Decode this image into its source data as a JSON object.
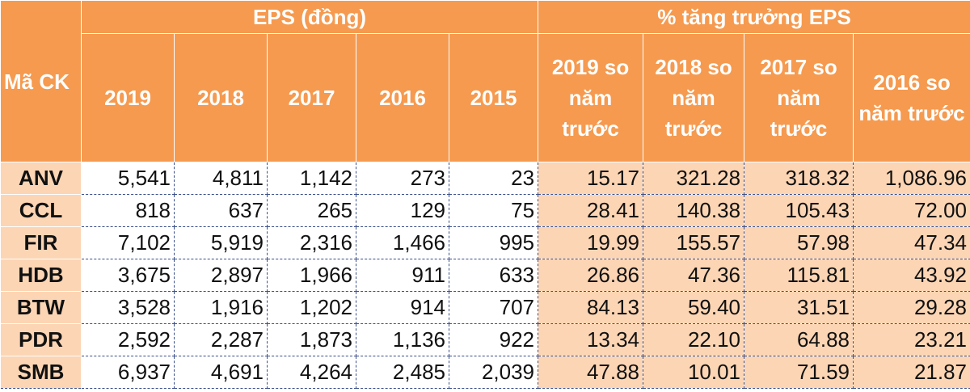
{
  "header": {
    "code": "Mã CK",
    "eps_group": "EPS (đồng)",
    "growth_group": "% tăng trưởng EPS",
    "eps_years": [
      "2019",
      "2018",
      "2017",
      "2016",
      "2015"
    ],
    "growth_cols": [
      "2019 so năm trước",
      "2018 so năm trước",
      "2017 so năm trước",
      "2016 so năm trước"
    ]
  },
  "table": {
    "rows": [
      {
        "code": "ANV",
        "eps": [
          "5,541",
          "4,811",
          "1,142",
          "273",
          "23"
        ],
        "growth": [
          "15.17",
          "321.28",
          "318.32",
          "1,086.96"
        ]
      },
      {
        "code": "CCL",
        "eps": [
          "818",
          "637",
          "265",
          "129",
          "75"
        ],
        "growth": [
          "28.41",
          "140.38",
          "105.43",
          "72.00"
        ]
      },
      {
        "code": "FIR",
        "eps": [
          "7,102",
          "5,919",
          "2,316",
          "1,466",
          "995"
        ],
        "growth": [
          "19.99",
          "155.57",
          "57.98",
          "47.34"
        ]
      },
      {
        "code": "HDB",
        "eps": [
          "3,675",
          "2,897",
          "1,966",
          "911",
          "633"
        ],
        "growth": [
          "26.86",
          "47.36",
          "115.81",
          "43.92"
        ]
      },
      {
        "code": "BTW",
        "eps": [
          "3,528",
          "1,916",
          "1,202",
          "914",
          "707"
        ],
        "growth": [
          "84.13",
          "59.40",
          "31.51",
          "29.28"
        ]
      },
      {
        "code": "PDR",
        "eps": [
          "2,592",
          "2,287",
          "1,873",
          "1,136",
          "922"
        ],
        "growth": [
          "13.34",
          "22.10",
          "64.88",
          "23.21"
        ]
      },
      {
        "code": "SMB",
        "eps": [
          "6,937",
          "4,691",
          "4,264",
          "2,485",
          "2,039"
        ],
        "growth": [
          "47.88",
          "10.01",
          "71.59",
          "21.87"
        ]
      }
    ]
  }
}
